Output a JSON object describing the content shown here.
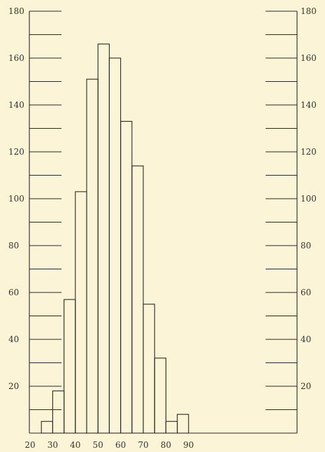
{
  "chart_data": {
    "type": "bar",
    "title": "",
    "xlabel": "",
    "ylabel": "",
    "ylim": [
      0,
      180
    ],
    "grid": false,
    "legend": "none",
    "x_ticks": [
      "20",
      "30",
      "40",
      "50",
      "60",
      "70",
      "80",
      "90"
    ],
    "y_ticks": [
      "20",
      "40",
      "60",
      "80",
      "100",
      "120",
      "140",
      "160",
      "180"
    ],
    "bin_width": 5,
    "bins": [
      {
        "x0": 25,
        "value": 5
      },
      {
        "x0": 30,
        "value": 18
      },
      {
        "x0": 35,
        "value": 57
      },
      {
        "x0": 40,
        "value": 103
      },
      {
        "x0": 45,
        "value": 151
      },
      {
        "x0": 50,
        "value": 166
      },
      {
        "x0": 55,
        "value": 160
      },
      {
        "x0": 60,
        "value": 133
      },
      {
        "x0": 65,
        "value": 114
      },
      {
        "x0": 70,
        "value": 55
      },
      {
        "x0": 75,
        "value": 32
      },
      {
        "x0": 80,
        "value": 5
      },
      {
        "x0": 85,
        "value": 8
      }
    ]
  },
  "colors": {
    "background": "#fbf4d6",
    "ink": "#2a2a2a"
  }
}
